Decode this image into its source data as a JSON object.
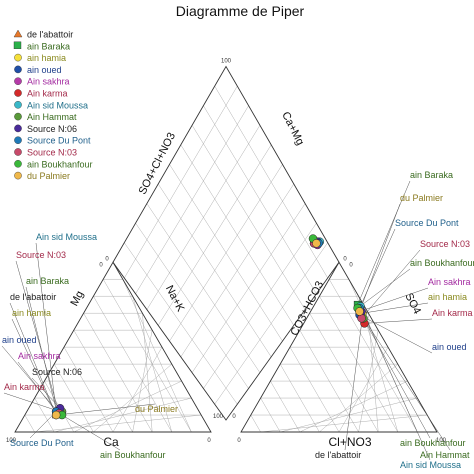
{
  "chart_data": {
    "type": "scatter",
    "title": "Diagramme de Piper",
    "grid": true,
    "legend_position": "top-left",
    "axis_labels": {
      "diamond_left": "SO4+Cl+NO3",
      "diamond_right": "Ca+Mg",
      "cation_left": "Mg",
      "cation_bottom": "Ca",
      "cation_right": "Na+K",
      "anion_left": "CO3+HCO3",
      "anion_right": "SO4",
      "anion_bottom": "Cl+NO3"
    },
    "tick_labels": {
      "zero": "0",
      "hundred": "100"
    },
    "series": [
      {
        "name": "de l'abattoir",
        "color": "#e8792a",
        "marker": "triangle",
        "cation": [
          0.74,
          0.1,
          0.16
        ],
        "anion": [
          0.28,
          0.04,
          0.68
        ],
        "label_color": "#222222"
      },
      {
        "name": "ain Baraka",
        "color": "#2bb04a",
        "marker": "square",
        "cation": [
          0.73,
          0.11,
          0.16
        ],
        "anion": [
          0.22,
          0.03,
          0.75
        ],
        "label_color": "#3a6b1f"
      },
      {
        "name": "ain hamia",
        "color": "#f5e03a",
        "marker": "circle",
        "cation": [
          0.74,
          0.1,
          0.16
        ],
        "anion": [
          0.27,
          0.03,
          0.7
        ],
        "label_color": "#8a8a1f"
      },
      {
        "name": "ain oued",
        "color": "#1f4fa8",
        "marker": "circle",
        "cation": [
          0.72,
          0.11,
          0.17
        ],
        "anion": [
          0.26,
          0.05,
          0.69
        ],
        "label_color": "#1f3f8a"
      },
      {
        "name": "Ain sakhra",
        "color": "#b53aa8",
        "marker": "circle",
        "cation": [
          0.73,
          0.12,
          0.15
        ],
        "anion": [
          0.25,
          0.04,
          0.71
        ],
        "label_color": "#a32aa0"
      },
      {
        "name": "Ain karma",
        "color": "#d42a2a",
        "marker": "circle",
        "cation": [
          0.71,
          0.12,
          0.17
        ],
        "anion": [
          0.31,
          0.05,
          0.64
        ],
        "label_color": "#a32a4a"
      },
      {
        "name": "Ain sid Moussa",
        "color": "#3ab8c8",
        "marker": "circle",
        "cation": [
          0.73,
          0.12,
          0.15
        ],
        "anion": [
          0.24,
          0.02,
          0.74
        ],
        "label_color": "#1f6f8a"
      },
      {
        "name": "Ain Hammat",
        "color": "#5a9a3a",
        "marker": "circle",
        "cation": [
          0.7,
          0.12,
          0.18
        ],
        "anion": [
          0.29,
          0.04,
          0.67
        ],
        "label_color": "#3a6b1f"
      },
      {
        "name": "Source N:06",
        "color": "#4a2a9a",
        "marker": "circle",
        "cation": [
          0.7,
          0.14,
          0.16
        ],
        "anion": [
          0.26,
          0.03,
          0.71
        ],
        "label_color": "#222222"
      },
      {
        "name": "Source Du Pont",
        "color": "#1f7ab8",
        "marker": "circle",
        "cation": [
          0.73,
          0.12,
          0.15
        ],
        "anion": [
          0.24,
          0.03,
          0.73
        ],
        "label_color": "#1f5f8a"
      },
      {
        "name": "Source N:03",
        "color": "#c84a6a",
        "marker": "circle",
        "cation": [
          0.72,
          0.11,
          0.17
        ],
        "anion": [
          0.28,
          0.05,
          0.67
        ],
        "label_color": "#a32a4a"
      },
      {
        "name": "ain Boukhanfour",
        "color": "#3ab83a",
        "marker": "circle",
        "cation": [
          0.71,
          0.1,
          0.19
        ],
        "anion": [
          0.23,
          0.04,
          0.73
        ],
        "label_color": "#3a6b1f"
      },
      {
        "name": "du Palmier",
        "color": "#f0b84a",
        "marker": "circle",
        "cation": [
          0.74,
          0.1,
          0.16
        ],
        "anion": [
          0.25,
          0.04,
          0.71
        ],
        "label_color": "#8a7a1f"
      }
    ]
  }
}
